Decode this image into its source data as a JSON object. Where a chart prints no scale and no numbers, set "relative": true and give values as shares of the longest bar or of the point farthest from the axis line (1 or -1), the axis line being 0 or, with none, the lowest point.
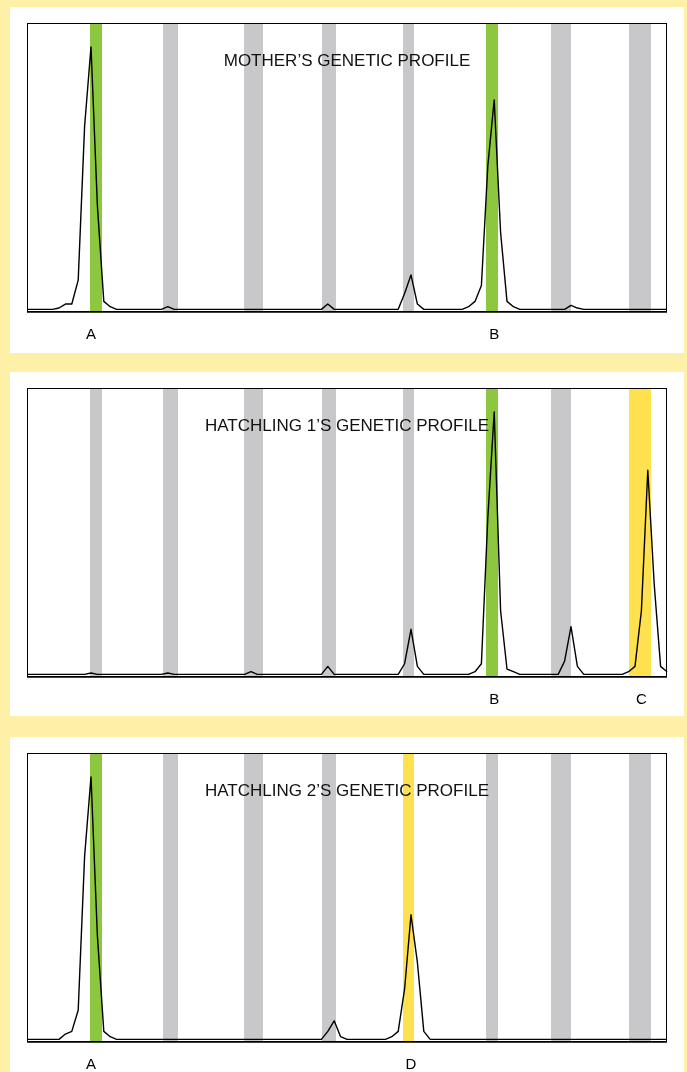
{
  "chart_data": [
    {
      "type": "line",
      "title": "MOTHER’S GENETIC PROFILE",
      "relative": true,
      "color": "#000000",
      "categories": [
        null,
        null,
        null,
        null,
        null,
        null,
        null,
        null,
        null,
        null,
        "A",
        null,
        null,
        null,
        null,
        null,
        null,
        null,
        null,
        null,
        null,
        null,
        null,
        null,
        null,
        null,
        null,
        null,
        null,
        null,
        null,
        null,
        null,
        null,
        null,
        null,
        null,
        null,
        null,
        null,
        null,
        null,
        null,
        null,
        null,
        null,
        null,
        null,
        null,
        null,
        null,
        null,
        null,
        null,
        null,
        null,
        null,
        null,
        null,
        null,
        null,
        null,
        null,
        null,
        null,
        null,
        null,
        null,
        null,
        null,
        null,
        null,
        null,
        "B",
        null,
        null,
        null,
        null,
        null,
        null,
        null,
        null,
        null,
        null,
        null,
        null,
        null,
        null,
        null,
        null,
        null,
        null,
        null,
        null,
        null,
        null,
        null,
        null,
        null,
        null,
        null
      ],
      "values": [
        0.01,
        0.01,
        0.01,
        0.01,
        0.01,
        0.015,
        0.03,
        0.03,
        0.12,
        0.7,
        1,
        0.4,
        0.04,
        0.02,
        0.01,
        0.01,
        0.01,
        0.01,
        0.01,
        0.01,
        0.01,
        0.01,
        0.02,
        0.01,
        0.01,
        0.01,
        0.01,
        0.01,
        0.01,
        0.01,
        0.01,
        0.01,
        0.01,
        0.01,
        0.01,
        0.01,
        0.01,
        0.01,
        0.01,
        0.01,
        0.01,
        0.01,
        0.01,
        0.01,
        0.01,
        0.01,
        0.01,
        0.03,
        0.01,
        0.01,
        0.01,
        0.01,
        0.01,
        0.01,
        0.01,
        0.01,
        0.01,
        0.01,
        0.01,
        0.07,
        0.14,
        0.03,
        0.01,
        0.01,
        0.01,
        0.01,
        0.01,
        0.01,
        0.01,
        0.02,
        0.04,
        0.1,
        0.55,
        0.8,
        0.3,
        0.04,
        0.02,
        0.01,
        0.01,
        0.01,
        0.01,
        0.01,
        0.01,
        0.01,
        0.01,
        0.025,
        0.015,
        0.01,
        0.01,
        0.01,
        0.01,
        0.01,
        0.01,
        0.01,
        0.01,
        0.01,
        0.01,
        0.01,
        0.01,
        0.01,
        0.01
      ]
    },
    {
      "type": "line",
      "title": "HATCHLING 1’S GENETIC PROFILE",
      "relative": true,
      "color": "#000000",
      "categories": [
        null,
        null,
        null,
        null,
        null,
        null,
        null,
        null,
        null,
        null,
        null,
        null,
        null,
        null,
        null,
        null,
        null,
        null,
        null,
        null,
        null,
        null,
        null,
        null,
        null,
        null,
        null,
        null,
        null,
        null,
        null,
        null,
        null,
        null,
        null,
        null,
        null,
        null,
        null,
        null,
        null,
        null,
        null,
        null,
        null,
        null,
        null,
        null,
        null,
        null,
        null,
        null,
        null,
        null,
        null,
        null,
        null,
        null,
        null,
        null,
        null,
        null,
        null,
        null,
        null,
        null,
        null,
        null,
        null,
        null,
        null,
        null,
        null,
        "B",
        null,
        null,
        null,
        null,
        null,
        null,
        null,
        null,
        null,
        null,
        null,
        null,
        null,
        null,
        null,
        null,
        null,
        null,
        null,
        null,
        null,
        null,
        "C",
        null,
        null,
        null,
        null
      ],
      "values": [
        0.01,
        0.01,
        0.01,
        0.01,
        0.01,
        0.01,
        0.01,
        0.01,
        0.01,
        0.01,
        0.015,
        0.01,
        0.01,
        0.01,
        0.01,
        0.01,
        0.01,
        0.01,
        0.01,
        0.01,
        0.01,
        0.01,
        0.015,
        0.01,
        0.01,
        0.01,
        0.01,
        0.01,
        0.01,
        0.01,
        0.01,
        0.01,
        0.01,
        0.01,
        0.01,
        0.02,
        0.01,
        0.01,
        0.01,
        0.01,
        0.01,
        0.01,
        0.01,
        0.01,
        0.01,
        0.01,
        0.01,
        0.04,
        0.01,
        0.01,
        0.01,
        0.01,
        0.01,
        0.01,
        0.01,
        0.01,
        0.01,
        0.01,
        0.01,
        0.05,
        0.18,
        0.04,
        0.01,
        0.01,
        0.01,
        0.01,
        0.01,
        0.01,
        0.01,
        0.01,
        0.02,
        0.05,
        0.6,
        1,
        0.25,
        0.03,
        0.02,
        0.01,
        0.01,
        0.01,
        0.01,
        0.01,
        0.01,
        0.01,
        0.06,
        0.19,
        0.04,
        0.01,
        0.01,
        0.01,
        0.01,
        0.01,
        0.01,
        0.01,
        0.02,
        0.04,
        0.25,
        0.78,
        0.35,
        0.04,
        0.02
      ]
    },
    {
      "type": "line",
      "title": "HATCHLING 2’S GENETIC PROFILE",
      "relative": true,
      "color": "#000000",
      "categories": [
        null,
        null,
        null,
        null,
        null,
        null,
        null,
        null,
        null,
        null,
        "A",
        null,
        null,
        null,
        null,
        null,
        null,
        null,
        null,
        null,
        null,
        null,
        null,
        null,
        null,
        null,
        null,
        null,
        null,
        null,
        null,
        null,
        null,
        null,
        null,
        null,
        null,
        null,
        null,
        null,
        null,
        null,
        null,
        null,
        null,
        null,
        null,
        null,
        null,
        null,
        null,
        null,
        null,
        null,
        null,
        null,
        null,
        null,
        null,
        null,
        "D",
        null,
        null,
        null,
        null,
        null,
        null,
        null,
        null,
        null,
        null,
        null,
        null,
        null,
        null,
        null,
        null,
        null,
        null,
        null,
        null,
        null,
        null,
        null,
        null,
        null,
        null,
        null,
        null,
        null,
        null,
        null,
        null,
        null,
        null,
        null,
        null,
        null,
        null,
        null,
        null
      ],
      "values": [
        0.01,
        0.01,
        0.01,
        0.01,
        0.01,
        0.01,
        0.03,
        0.04,
        0.12,
        0.7,
        1,
        0.4,
        0.04,
        0.02,
        0.01,
        0.01,
        0.01,
        0.01,
        0.01,
        0.01,
        0.01,
        0.01,
        0.01,
        0.01,
        0.01,
        0.01,
        0.01,
        0.01,
        0.01,
        0.01,
        0.01,
        0.01,
        0.01,
        0.01,
        0.01,
        0.01,
        0.01,
        0.01,
        0.01,
        0.01,
        0.01,
        0.01,
        0.01,
        0.01,
        0.01,
        0.01,
        0.01,
        0.04,
        0.08,
        0.02,
        0.01,
        0.01,
        0.01,
        0.01,
        0.01,
        0.01,
        0.01,
        0.02,
        0.04,
        0.2,
        0.48,
        0.3,
        0.04,
        0.01,
        0.01,
        0.01,
        0.01,
        0.01,
        0.01,
        0.01,
        0.01,
        0.01,
        0.01,
        0.01,
        0.01,
        0.01,
        0.01,
        0.01,
        0.01,
        0.01,
        0.01,
        0.01,
        0.01,
        0.01,
        0.01,
        0.01,
        0.01,
        0.01,
        0.01,
        0.01,
        0.01,
        0.01,
        0.01,
        0.01,
        0.01,
        0.01,
        0.01,
        0.01,
        0.01,
        0.01,
        0.01
      ]
    }
  ]
}
